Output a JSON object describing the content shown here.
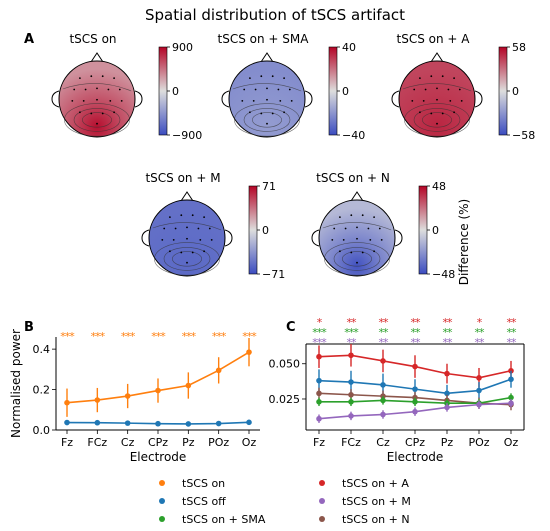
{
  "figure": {
    "title": "Spatial distribution of tSCS artifact",
    "panel_labels": [
      "A",
      "B",
      "C"
    ],
    "colors": {
      "tscs_on": "#ff7f0e",
      "tscs_off": "#1f77b4",
      "sma": "#2ca02c",
      "a": "#d62728",
      "m": "#9467bd",
      "n": "#8c564b",
      "map_red": "#b40426",
      "map_white": "#dddddd",
      "map_blue": "#3b4cc0"
    }
  },
  "topomaps": [
    {
      "title": "tSCS on",
      "vmax": "900",
      "vmid": "0",
      "vmin": "−900",
      "tone": 0.35,
      "hot": 0.95
    },
    {
      "title": "tSCS on + SMA",
      "vmax": "40",
      "vmid": "0",
      "vmin": "−40",
      "tone": -0.55,
      "hot": -0.45
    },
    {
      "title": "tSCS on + A",
      "vmax": "58",
      "vmid": "0",
      "vmin": "−58",
      "tone": 0.7,
      "hot": 0.85
    },
    {
      "title": "tSCS on + M",
      "vmax": "71",
      "vmid": "0",
      "vmin": "−71",
      "tone": -0.75,
      "hot": -0.8
    },
    {
      "title": "tSCS on + N",
      "vmax": "48",
      "vmid": "0",
      "vmin": "−48",
      "tone": -0.25,
      "hot": -0.95
    }
  ],
  "colorbar_label": "Difference (%)",
  "chart_data": [
    {
      "type": "line",
      "panel": "B",
      "xlabel": "Electrode",
      "ylabel": "Normalised power",
      "categories": [
        "Fz",
        "FCz",
        "Cz",
        "CPz",
        "Pz",
        "POz",
        "Oz"
      ],
      "ylim": [
        0,
        0.46
      ],
      "yticks": [
        0.0,
        0.2,
        0.4
      ],
      "ytick_labels": [
        "0.0",
        "0.2",
        "0.4"
      ],
      "series": [
        {
          "name": "tSCS on",
          "color": "#ff7f0e",
          "values": [
            0.135,
            0.148,
            0.168,
            0.195,
            0.22,
            0.295,
            0.385
          ],
          "err": [
            0.07,
            0.06,
            0.06,
            0.06,
            0.065,
            0.065,
            0.07
          ]
        },
        {
          "name": "tSCS off",
          "color": "#1f77b4",
          "values": [
            0.037,
            0.036,
            0.034,
            0.031,
            0.03,
            0.032,
            0.038
          ],
          "err": [
            0.004,
            0.004,
            0.004,
            0.004,
            0.004,
            0.004,
            0.004
          ]
        }
      ],
      "significance": [
        {
          "color": "#ff7f0e",
          "marks": [
            "***",
            "***",
            "***",
            "***",
            "***",
            "***",
            "***"
          ]
        }
      ]
    },
    {
      "type": "line",
      "panel": "C",
      "xlabel": "Electrode",
      "ylabel": "",
      "categories": [
        "Fz",
        "FCz",
        "Cz",
        "CPz",
        "Pz",
        "POz",
        "Oz"
      ],
      "ylim": [
        0.003,
        0.064
      ],
      "yticks": [
        0.025,
        0.05
      ],
      "ytick_labels": [
        "0.025",
        "0.050"
      ],
      "series": [
        {
          "name": "tSCS on + A",
          "color": "#d62728",
          "values": [
            0.055,
            0.056,
            0.052,
            0.048,
            0.043,
            0.04,
            0.045
          ],
          "err": [
            0.008,
            0.008,
            0.008,
            0.008,
            0.007,
            0.007,
            0.007
          ]
        },
        {
          "name": "tSCS off",
          "color": "#1f77b4",
          "values": [
            0.038,
            0.037,
            0.035,
            0.032,
            0.029,
            0.031,
            0.039
          ],
          "err": [
            0.008,
            0.008,
            0.008,
            0.007,
            0.006,
            0.006,
            0.006
          ]
        },
        {
          "name": "tSCS on + N",
          "color": "#8c564b",
          "values": [
            0.029,
            0.028,
            0.027,
            0.026,
            0.024,
            0.022,
            0.021
          ],
          "err": [
            0.004,
            0.004,
            0.004,
            0.004,
            0.004,
            0.004,
            0.004
          ]
        },
        {
          "name": "tSCS on + SMA",
          "color": "#2ca02c",
          "values": [
            0.023,
            0.023,
            0.024,
            0.023,
            0.022,
            0.022,
            0.026
          ],
          "err": [
            0.003,
            0.003,
            0.003,
            0.003,
            0.003,
            0.003,
            0.003
          ]
        },
        {
          "name": "tSCS on + M",
          "color": "#9467bd",
          "values": [
            0.011,
            0.013,
            0.014,
            0.016,
            0.019,
            0.021,
            0.022
          ],
          "err": [
            0.003,
            0.003,
            0.003,
            0.003,
            0.003,
            0.003,
            0.003
          ]
        }
      ],
      "significance": [
        {
          "color": "#d62728",
          "marks": [
            "*",
            "**",
            "**",
            "**",
            "**",
            "*",
            "**"
          ]
        },
        {
          "color": "#2ca02c",
          "marks": [
            "***",
            "***",
            "**",
            "**",
            "**",
            "**",
            "**"
          ]
        },
        {
          "color": "#9467bd",
          "marks": [
            "***",
            "**",
            "**",
            "**",
            "**",
            "**",
            "**"
          ]
        }
      ]
    }
  ],
  "legend": {
    "items": [
      {
        "label": "tSCS on",
        "color": "#ff7f0e"
      },
      {
        "label": "tSCS on + A",
        "color": "#d62728"
      },
      {
        "label": "tSCS off",
        "color": "#1f77b4"
      },
      {
        "label": "tSCS on + M",
        "color": "#9467bd"
      },
      {
        "label": "tSCS on + SMA",
        "color": "#2ca02c"
      },
      {
        "label": "tSCS on + N",
        "color": "#8c564b"
      }
    ]
  }
}
